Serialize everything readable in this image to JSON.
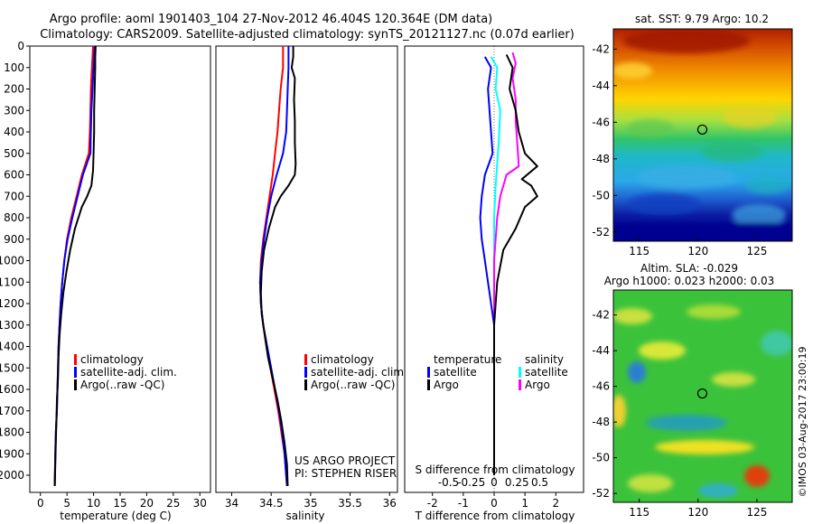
{
  "header": {
    "line1": "Argo profile: aoml 1901403_104 27-Nov-2012 46.404S 120.364E (DM data)",
    "line2": "Climatology: CARS2009. Satellite-adjusted climatology: synTS_20121127.nc (0.07d earlier)"
  },
  "credit": "US ARGO PROJECT",
  "pi": "PI: STEPHEN RISER",
  "stamp": "©IMOS 03-Aug-2017 23:00:19",
  "chart_data": [
    {
      "type": "line",
      "id": "temperature",
      "xlabel": "temperature (deg C)",
      "xlim": [
        -2,
        32
      ],
      "xticks": [
        0,
        5,
        10,
        15,
        20,
        25,
        30
      ],
      "ylim": [
        0,
        2080
      ],
      "yticks": [
        0,
        100,
        200,
        300,
        400,
        500,
        600,
        700,
        800,
        900,
        1000,
        1100,
        1200,
        1300,
        1400,
        1500,
        1600,
        1700,
        1800,
        1900,
        2000
      ],
      "legend": [
        "climatology",
        "satellite-adj. clim.",
        "Argo(..raw -QC)"
      ],
      "series": [
        {
          "name": "climatology",
          "color": "#ff0000",
          "points": [
            [
              9.9,
              0
            ],
            [
              9.8,
              50
            ],
            [
              9.7,
              100
            ],
            [
              9.5,
              200
            ],
            [
              9.4,
              300
            ],
            [
              9.3,
              400
            ],
            [
              9.1,
              500
            ],
            [
              7.8,
              600
            ],
            [
              6.8,
              700
            ],
            [
              5.8,
              800
            ],
            [
              5.0,
              900
            ],
            [
              4.5,
              1000
            ],
            [
              4.1,
              1100
            ],
            [
              3.8,
              1200
            ],
            [
              3.6,
              1300
            ],
            [
              3.4,
              1400
            ],
            [
              3.3,
              1500
            ],
            [
              3.2,
              1600
            ],
            [
              3.1,
              1700
            ],
            [
              2.9,
              1800
            ],
            [
              2.8,
              1900
            ],
            [
              2.7,
              2050
            ]
          ]
        },
        {
          "name": "satellite-adj. clim.",
          "color": "#0000ff",
          "points": [
            [
              10.2,
              0
            ],
            [
              10.1,
              50
            ],
            [
              10.0,
              100
            ],
            [
              9.8,
              200
            ],
            [
              9.6,
              300
            ],
            [
              9.5,
              400
            ],
            [
              9.4,
              500
            ],
            [
              8.0,
              600
            ],
            [
              7.0,
              700
            ],
            [
              6.0,
              800
            ],
            [
              5.1,
              900
            ],
            [
              4.5,
              1000
            ],
            [
              4.1,
              1100
            ],
            [
              3.8,
              1200
            ],
            [
              3.6,
              1300
            ],
            [
              3.4,
              1400
            ],
            [
              3.3,
              1500
            ],
            [
              3.2,
              1600
            ],
            [
              3.1,
              1700
            ],
            [
              2.9,
              1800
            ],
            [
              2.8,
              1900
            ],
            [
              2.7,
              2050
            ]
          ]
        },
        {
          "name": "Argo(..raw -QC)",
          "color": "#000000",
          "points": [
            [
              10.4,
              0
            ],
            [
              10.3,
              50
            ],
            [
              10.3,
              100
            ],
            [
              10.2,
              200
            ],
            [
              10.1,
              300
            ],
            [
              10.1,
              400
            ],
            [
              10.0,
              500
            ],
            [
              9.9,
              580
            ],
            [
              9.6,
              650
            ],
            [
              8.8,
              700
            ],
            [
              7.8,
              750
            ],
            [
              6.5,
              850
            ],
            [
              5.6,
              950
            ],
            [
              4.9,
              1050
            ],
            [
              4.3,
              1150
            ],
            [
              3.9,
              1250
            ],
            [
              3.6,
              1350
            ],
            [
              3.4,
              1450
            ],
            [
              3.3,
              1550
            ],
            [
              3.1,
              1650
            ],
            [
              3.0,
              1750
            ],
            [
              2.9,
              1850
            ],
            [
              2.8,
              1950
            ],
            [
              2.7,
              2050
            ]
          ]
        }
      ]
    },
    {
      "type": "line",
      "id": "salinity",
      "xlabel": "salinity",
      "xlim": [
        33.8,
        36.1
      ],
      "xticks": [
        34,
        34.5,
        35,
        35.5,
        36
      ],
      "ylim": [
        0,
        2080
      ],
      "legend": [
        "climatology",
        "satellite-adj. clim.",
        "Argo(..raw -QC)"
      ],
      "series": [
        {
          "name": "climatology",
          "color": "#ff0000",
          "points": [
            [
              34.65,
              0
            ],
            [
              34.65,
              100
            ],
            [
              34.62,
              200
            ],
            [
              34.6,
              300
            ],
            [
              34.58,
              400
            ],
            [
              34.55,
              500
            ],
            [
              34.52,
              600
            ],
            [
              34.48,
              700
            ],
            [
              34.44,
              800
            ],
            [
              34.4,
              900
            ],
            [
              34.37,
              1000
            ],
            [
              34.36,
              1100
            ],
            [
              34.37,
              1200
            ],
            [
              34.4,
              1300
            ],
            [
              34.44,
              1400
            ],
            [
              34.49,
              1500
            ],
            [
              34.54,
              1600
            ],
            [
              34.59,
              1700
            ],
            [
              34.63,
              1800
            ],
            [
              34.67,
              1900
            ],
            [
              34.7,
              2050
            ]
          ]
        },
        {
          "name": "satellite-adj. clim.",
          "color": "#0000ff",
          "points": [
            [
              34.72,
              0
            ],
            [
              34.72,
              100
            ],
            [
              34.71,
              200
            ],
            [
              34.7,
              300
            ],
            [
              34.69,
              400
            ],
            [
              34.65,
              500
            ],
            [
              34.57,
              600
            ],
            [
              34.5,
              700
            ],
            [
              34.45,
              800
            ],
            [
              34.41,
              900
            ],
            [
              34.38,
              1000
            ],
            [
              34.36,
              1100
            ],
            [
              34.37,
              1200
            ],
            [
              34.4,
              1300
            ],
            [
              34.45,
              1400
            ],
            [
              34.5,
              1500
            ],
            [
              34.55,
              1600
            ],
            [
              34.6,
              1700
            ],
            [
              34.64,
              1800
            ],
            [
              34.67,
              1900
            ],
            [
              34.7,
              2050
            ]
          ]
        },
        {
          "name": "Argo(..raw -QC)",
          "color": "#000000",
          "points": [
            [
              34.78,
              0
            ],
            [
              34.78,
              50
            ],
            [
              34.76,
              100
            ],
            [
              34.8,
              150
            ],
            [
              34.79,
              250
            ],
            [
              34.8,
              350
            ],
            [
              34.8,
              450
            ],
            [
              34.81,
              550
            ],
            [
              34.8,
              600
            ],
            [
              34.72,
              650
            ],
            [
              34.62,
              700
            ],
            [
              34.55,
              750
            ],
            [
              34.47,
              850
            ],
            [
              34.41,
              950
            ],
            [
              34.38,
              1050
            ],
            [
              34.37,
              1150
            ],
            [
              34.38,
              1250
            ],
            [
              34.42,
              1350
            ],
            [
              34.46,
              1450
            ],
            [
              34.52,
              1550
            ],
            [
              34.58,
              1650
            ],
            [
              34.63,
              1750
            ],
            [
              34.67,
              1850
            ],
            [
              34.7,
              1950
            ],
            [
              34.71,
              2050
            ]
          ]
        }
      ]
    },
    {
      "type": "line",
      "id": "difference",
      "xlabel": "T difference from climatology",
      "xlabel_top": "S difference from climatology",
      "xlim": [
        -2.9,
        2.9
      ],
      "xticks": [
        -2,
        -1,
        0,
        1,
        2
      ],
      "xtick_labels": [
        "-2",
        "-1",
        "0",
        "1",
        "2"
      ],
      "xticks_s": [
        -0.5,
        -0.25,
        0,
        0.25,
        0.5
      ],
      "xtick_labels_s": [
        "-0.5",
        "-0.25",
        "0",
        "0.25",
        "0.5"
      ],
      "ylim": [
        0,
        2080
      ],
      "legend_t": {
        "title": "temperature",
        "items": [
          "satellite",
          "Argo"
        ]
      },
      "legend_s": {
        "title": "salinity",
        "items": [
          "satellite",
          "Argo"
        ]
      },
      "series": [
        {
          "name": "satellite",
          "color": "#00ffff",
          "points": [
            [
              -0.1,
              50
            ],
            [
              0.1,
              100
            ],
            [
              0.05,
              200
            ],
            [
              0.2,
              300
            ],
            [
              0.15,
              450
            ],
            [
              0.1,
              550
            ],
            [
              0.05,
              650
            ],
            [
              0.0,
              800
            ],
            [
              0.0,
              1000
            ],
            [
              0.0,
              1500
            ],
            [
              0.0,
              2000
            ]
          ]
        },
        {
          "name": "Argo",
          "color": "#ff00ff",
          "points": [
            [
              0.6,
              30
            ],
            [
              0.7,
              80
            ],
            [
              0.6,
              150
            ],
            [
              0.7,
              250
            ],
            [
              0.7,
              350
            ],
            [
              0.75,
              450
            ],
            [
              0.8,
              560
            ],
            [
              0.4,
              600
            ],
            [
              0.2,
              700
            ],
            [
              0.1,
              800
            ],
            [
              0.0,
              1000
            ],
            [
              0.0,
              1500
            ],
            [
              0.0,
              2000
            ]
          ]
        },
        {
          "name": "satellite",
          "color": "#0000ff",
          "points": [
            [
              -0.3,
              50
            ],
            [
              -0.1,
              100
            ],
            [
              -0.2,
              200
            ],
            [
              -0.15,
              300
            ],
            [
              -0.1,
              400
            ],
            [
              -0.05,
              500
            ],
            [
              -0.3,
              600
            ],
            [
              -0.4,
              700
            ],
            [
              -0.45,
              800
            ],
            [
              -0.4,
              900
            ],
            [
              -0.3,
              1000
            ],
            [
              -0.2,
              1100
            ],
            [
              -0.1,
              1200
            ],
            [
              0.0,
              1300
            ],
            [
              0.0,
              1500
            ],
            [
              0.0,
              2000
            ]
          ]
        },
        {
          "name": "Argo",
          "color": "#000000",
          "points": [
            [
              0.4,
              40
            ],
            [
              0.6,
              100
            ],
            [
              0.5,
              200
            ],
            [
              0.7,
              300
            ],
            [
              0.8,
              400
            ],
            [
              1.0,
              500
            ],
            [
              1.4,
              560
            ],
            [
              0.9,
              620
            ],
            [
              1.2,
              650
            ],
            [
              1.4,
              700
            ],
            [
              1.0,
              750
            ],
            [
              0.7,
              850
            ],
            [
              0.3,
              950
            ],
            [
              0.1,
              1100
            ],
            [
              0.0,
              1300
            ],
            [
              0.0,
              1500
            ],
            [
              0.0,
              2000
            ]
          ]
        }
      ]
    },
    {
      "type": "heatmap",
      "id": "sst_map",
      "title": "sat. SST: 9.79  Argo: 10.2",
      "xticks": [
        115,
        120,
        125
      ],
      "yticks": [
        -42,
        -44,
        -46,
        -48,
        -50,
        -52
      ],
      "xlim": [
        112.8,
        128.0
      ],
      "ylim": [
        -52.5,
        -40.9
      ],
      "marker": {
        "lon": 120.36,
        "lat": -46.4
      }
    },
    {
      "type": "heatmap",
      "id": "sla_map",
      "title_line1": "Altim. SLA: -0.029",
      "title_line2": "Argo h1000: 0.023 h2000: 0.03",
      "xticks": [
        115,
        120,
        125
      ],
      "yticks": [
        -42,
        -44,
        -46,
        -48,
        -50,
        -52
      ],
      "xlim": [
        112.8,
        128.0
      ],
      "ylim": [
        -52.5,
        -40.6
      ],
      "marker": {
        "lon": 120.36,
        "lat": -46.4
      }
    }
  ]
}
